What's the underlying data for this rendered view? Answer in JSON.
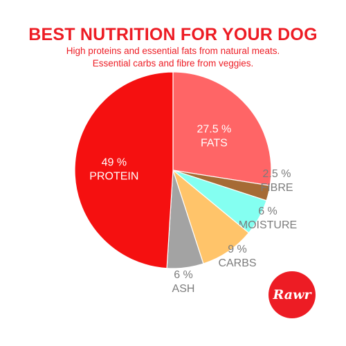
{
  "header": {
    "title": "BEST NUTRITION FOR YOUR DOG",
    "subtitle_line1": "High proteins and essential fats from natural meats.",
    "subtitle_line2": "Essential carbs and fibre from veggies."
  },
  "logo": {
    "text": "Rawr",
    "color": "#ed1c24"
  },
  "chart_data": {
    "type": "pie",
    "slices": [
      {
        "pct_label": "27.5 %",
        "name": "FATS",
        "value": 27.5,
        "color": "#ff6566",
        "label_style": "inside"
      },
      {
        "pct_label": "2.5 %",
        "name": "FIBRE",
        "value": 2.5,
        "color": "#a66b35",
        "label_style": "outside"
      },
      {
        "pct_label": "6 %",
        "name": "MOISTURE",
        "value": 6,
        "color": "#84fff1",
        "label_style": "outside"
      },
      {
        "pct_label": "9 %",
        "name": "CARBS",
        "value": 9,
        "color": "#ffc46a",
        "label_style": "outside"
      },
      {
        "pct_label": "6 %",
        "name": "ASH",
        "value": 6,
        "color": "#a3a3a3",
        "label_style": "outside"
      },
      {
        "pct_label": "49 %",
        "name": "PROTEIN",
        "value": 49,
        "color": "#f51010",
        "label_style": "inside"
      }
    ]
  }
}
